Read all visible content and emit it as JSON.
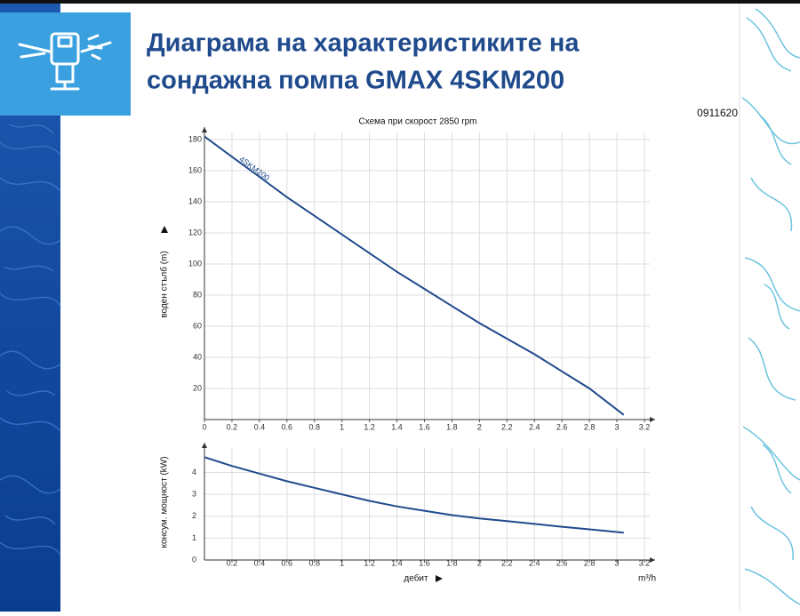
{
  "header": {
    "title_line1": "Диаграма на характеристиките на",
    "title_line2": "сондажна помпа GMAX 4SKM200",
    "code": "0911620"
  },
  "chart_data": [
    {
      "type": "line",
      "subtitle": "Схема при скорост 2850 rpm",
      "ylabel": "воден стълб (m)",
      "xlim": [
        0,
        3.2
      ],
      "ylim": [
        0,
        180
      ],
      "grid": true,
      "xticks": [
        0,
        0.2,
        0.4,
        0.6,
        0.8,
        1,
        1.2,
        1.4,
        1.6,
        1.8,
        2,
        2.2,
        2.4,
        2.6,
        2.8,
        3,
        3.2
      ],
      "yticks": [
        20,
        40,
        60,
        80,
        100,
        120,
        140,
        160,
        180
      ],
      "series": [
        {
          "name": "4SKM200",
          "color": "#1f4a8c",
          "x": [
            0,
            0.2,
            0.4,
            0.6,
            0.8,
            1,
            1.2,
            1.4,
            1.6,
            1.8,
            2,
            2.2,
            2.4,
            2.6,
            2.8,
            3.05
          ],
          "values": [
            182,
            169,
            156,
            143,
            131,
            119,
            107,
            95,
            84,
            73,
            62,
            52,
            42,
            31,
            20,
            3
          ]
        }
      ]
    },
    {
      "type": "line",
      "ylabel": "консум. мощност (kW)",
      "xlabel": "дебит",
      "xunit": "m³/h",
      "xlim": [
        0,
        3.2
      ],
      "ylim": [
        0,
        5.2
      ],
      "grid": true,
      "xticks": [
        0.2,
        0.4,
        0.6,
        0.8,
        1,
        1.2,
        1.4,
        1.6,
        1.8,
        2,
        2.2,
        2.4,
        2.6,
        2.8,
        3,
        3.2
      ],
      "yticks": [
        0,
        1,
        2,
        3,
        4
      ],
      "series": [
        {
          "color": "#1f4a8c",
          "x": [
            0,
            0.2,
            0.4,
            0.6,
            0.8,
            1,
            1.2,
            1.4,
            1.6,
            1.8,
            2,
            2.2,
            2.4,
            2.6,
            2.8,
            3.05
          ],
          "values": [
            4.7,
            4.3,
            3.95,
            3.6,
            3.3,
            3.0,
            2.7,
            2.45,
            2.25,
            2.05,
            1.9,
            1.78,
            1.65,
            1.52,
            1.4,
            1.25
          ]
        }
      ]
    }
  ]
}
